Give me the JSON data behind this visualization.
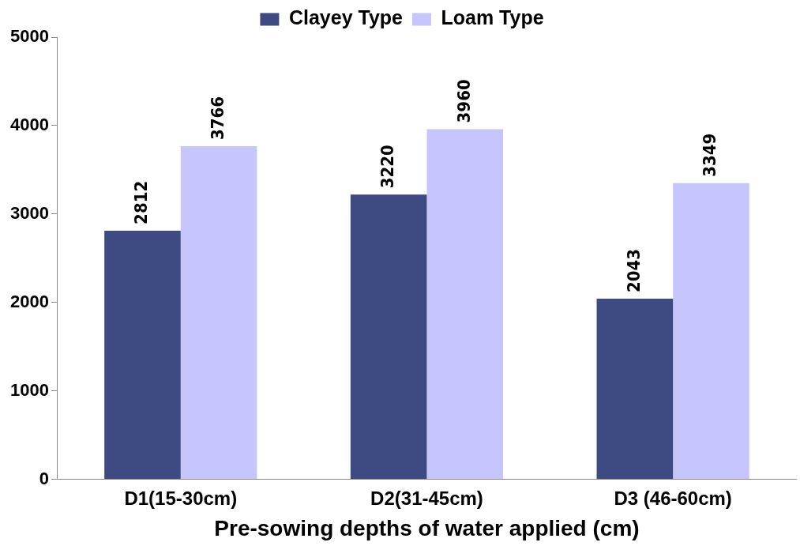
{
  "chart_data": {
    "type": "bar",
    "xlabel": "Pre-sowing depths of water applied (cm)",
    "categories": [
      "D1(15-30cm)",
      "D2(31-45cm)",
      "D3 (46-60cm)"
    ],
    "series": [
      {
        "name": "Clayey Type",
        "color": "#3d4b82",
        "values": [
          2812,
          3220,
          2043
        ]
      },
      {
        "name": "Loam Type",
        "color": "#c6c6fc",
        "values": [
          3766,
          3960,
          3349
        ]
      }
    ],
    "ylim": [
      0,
      5000
    ],
    "yticks": [
      0,
      1000,
      2000,
      3000,
      4000,
      5000
    ],
    "grid": false,
    "legend": "top",
    "data_labels": true
  }
}
